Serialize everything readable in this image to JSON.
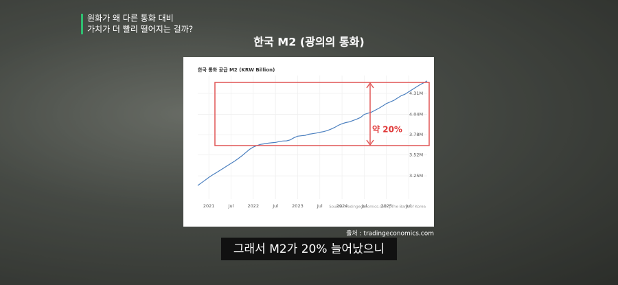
{
  "header": {
    "lines": [
      "원화가 왜 다른 통화 대비",
      "가치가 더 빨리 떨어지는 걸까?"
    ]
  },
  "slide_title": "한국 M2 (광의의 통화)",
  "credit": "출처 : tradingeconomics.com",
  "caption": "그래서 M2가 20% 늘어났으니",
  "chart_data": {
    "type": "line",
    "title": "한국 통화 공급 M2 (KRW Billion)",
    "source": "Source: tradingeconomics.com | The Bank of Korea",
    "annotation": "약 20%",
    "color": "#4a7fbf",
    "grid": true,
    "x": [
      "2020-10",
      "2020-11",
      "2020-12",
      "2021-01",
      "2021-02",
      "2021-03",
      "2021-04",
      "2021-05",
      "2021-06",
      "2021-07",
      "2021-08",
      "2021-09",
      "2021-10",
      "2021-11",
      "2021-12",
      "2022-01",
      "2022-02",
      "2022-03",
      "2022-04",
      "2022-05",
      "2022-06",
      "2022-07",
      "2022-08",
      "2022-09",
      "2022-10",
      "2022-11",
      "2022-12",
      "2023-01",
      "2023-02",
      "2023-03",
      "2023-04",
      "2023-05",
      "2023-06",
      "2023-07",
      "2023-08",
      "2023-09",
      "2023-10",
      "2023-11",
      "2023-12",
      "2024-01",
      "2024-02",
      "2024-03",
      "2024-04",
      "2024-05",
      "2024-06",
      "2024-07",
      "2024-08",
      "2024-09",
      "2024-10",
      "2024-11",
      "2024-12",
      "2025-01",
      "2025-02",
      "2025-03",
      "2025-04",
      "2025-05",
      "2025-06",
      "2025-07",
      "2025-08",
      "2025-09",
      "2025-10",
      "2025-11",
      "2025-12"
    ],
    "values": [
      3126000,
      3160000,
      3195000,
      3230000,
      3262000,
      3290000,
      3320000,
      3350000,
      3380000,
      3410000,
      3440000,
      3475000,
      3510000,
      3550000,
      3590000,
      3620000,
      3640000,
      3655000,
      3662000,
      3670000,
      3675000,
      3680000,
      3690000,
      3698000,
      3700000,
      3712000,
      3740000,
      3760000,
      3765000,
      3770000,
      3785000,
      3792000,
      3800000,
      3810000,
      3818000,
      3832000,
      3850000,
      3872000,
      3900000,
      3920000,
      3935000,
      3945000,
      3962000,
      3980000,
      4000000,
      4040000,
      4055000,
      4070000,
      4095000,
      4120000,
      4150000,
      4180000,
      4200000,
      4220000,
      4250000,
      4280000,
      4300000,
      4330000,
      4360000,
      4390000,
      4420000,
      4445000,
      4470000
    ],
    "xticks": [
      {
        "value": "2021-01",
        "label": "2021"
      },
      {
        "value": "2021-07",
        "label": "Jul"
      },
      {
        "value": "2022-01",
        "label": "2022"
      },
      {
        "value": "2022-07",
        "label": "Jul"
      },
      {
        "value": "2023-01",
        "label": "2023"
      },
      {
        "value": "2023-07",
        "label": "Jul"
      },
      {
        "value": "2024-01",
        "label": "2024"
      },
      {
        "value": "2024-07",
        "label": "Jul"
      },
      {
        "value": "2025-01",
        "label": "2025"
      },
      {
        "value": "2025-07",
        "label": "Jul"
      }
    ],
    "ylim": [
      2950000,
      4540000
    ],
    "yticks": [
      {
        "value": 3250000,
        "label": "3.25M"
      },
      {
        "value": 3520000,
        "label": "3.52M"
      },
      {
        "value": 3780000,
        "label": "3.78M"
      },
      {
        "value": 4040000,
        "label": "4.04M"
      },
      {
        "value": 4310000,
        "label": "4.31M"
      }
    ]
  }
}
